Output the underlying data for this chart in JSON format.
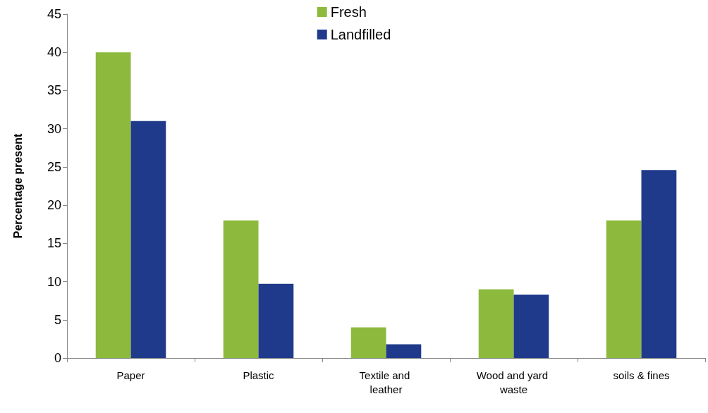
{
  "chart_data": {
    "type": "bar",
    "ylabel": "Percentage present",
    "categories": [
      "Paper",
      "Plastic",
      "Textile and leather",
      "Wood and yard waste",
      "soils & fines"
    ],
    "series": [
      {
        "name": "Fresh",
        "color": "#8dba3c",
        "values": [
          40,
          18,
          4,
          9,
          18
        ]
      },
      {
        "name": "Landfilled",
        "color": "#1f3a8a",
        "values": [
          31,
          9.7,
          1.8,
          8.3,
          24.6
        ]
      }
    ],
    "ylim": [
      0,
      45
    ],
    "yticks": [
      0,
      5,
      10,
      15,
      20,
      25,
      30,
      35,
      40,
      45
    ],
    "grid": false,
    "legend": "top"
  }
}
